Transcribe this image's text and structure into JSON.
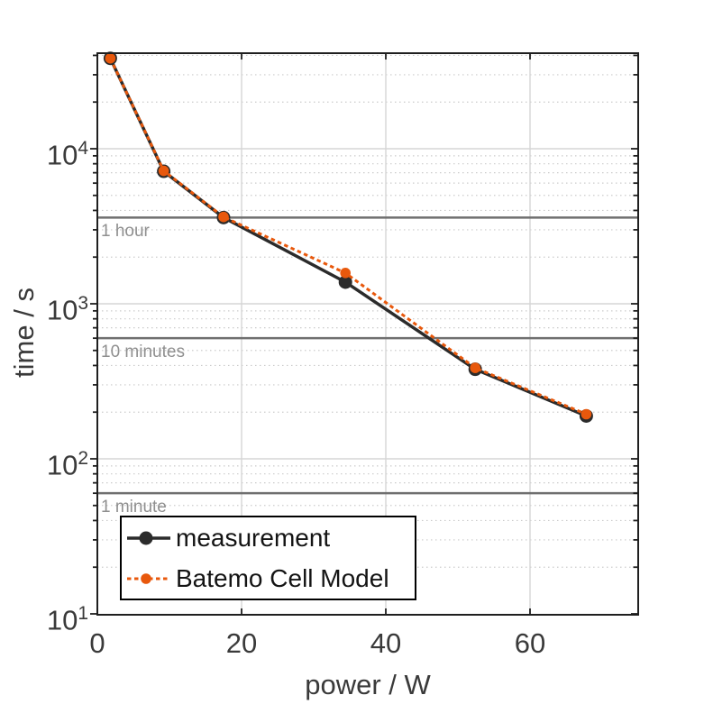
{
  "chart_data": {
    "type": "line",
    "title": "",
    "xlabel": "power / W",
    "ylabel": "time / s",
    "x_scale": "linear",
    "y_scale": "log",
    "xlim": [
      0,
      75
    ],
    "ylim": [
      10,
      41300
    ],
    "xticks": [
      0,
      20,
      40,
      60
    ],
    "ytick_exponents": [
      1,
      2,
      3,
      4
    ],
    "grid": "on",
    "legend_position": "bottom-left",
    "series": [
      {
        "name": "measurement",
        "color": "#2b2b2b",
        "style": "solid",
        "marker": "circle",
        "x": [
          1.8,
          9.2,
          17.5,
          34.4,
          52.4,
          67.8
        ],
        "y": [
          38300,
          7150,
          3600,
          1380,
          378,
          189
        ]
      },
      {
        "name": "Batemo Cell Model",
        "color": "#e8580c",
        "style": "dotted",
        "marker": "circle",
        "x": [
          1.8,
          9.2,
          17.5,
          34.4,
          52.4,
          67.8
        ],
        "y": [
          38300,
          7200,
          3630,
          1580,
          386,
          194
        ]
      }
    ],
    "ref_lines": [
      {
        "label": "1 hour",
        "value": 3600
      },
      {
        "label": "10 minutes",
        "value": 600
      },
      {
        "label": "1 minute",
        "value": 60
      }
    ]
  },
  "colors": {
    "background": "#ffffff",
    "axis": "#1f1f1f",
    "grid_major": "#d6d6d6",
    "grid_minor": "#cbcbcb",
    "ref_line": "#6f6f6f",
    "ref_label": "#8f8f8f",
    "text": "#3a3a3a",
    "legend_border": "#000000"
  }
}
